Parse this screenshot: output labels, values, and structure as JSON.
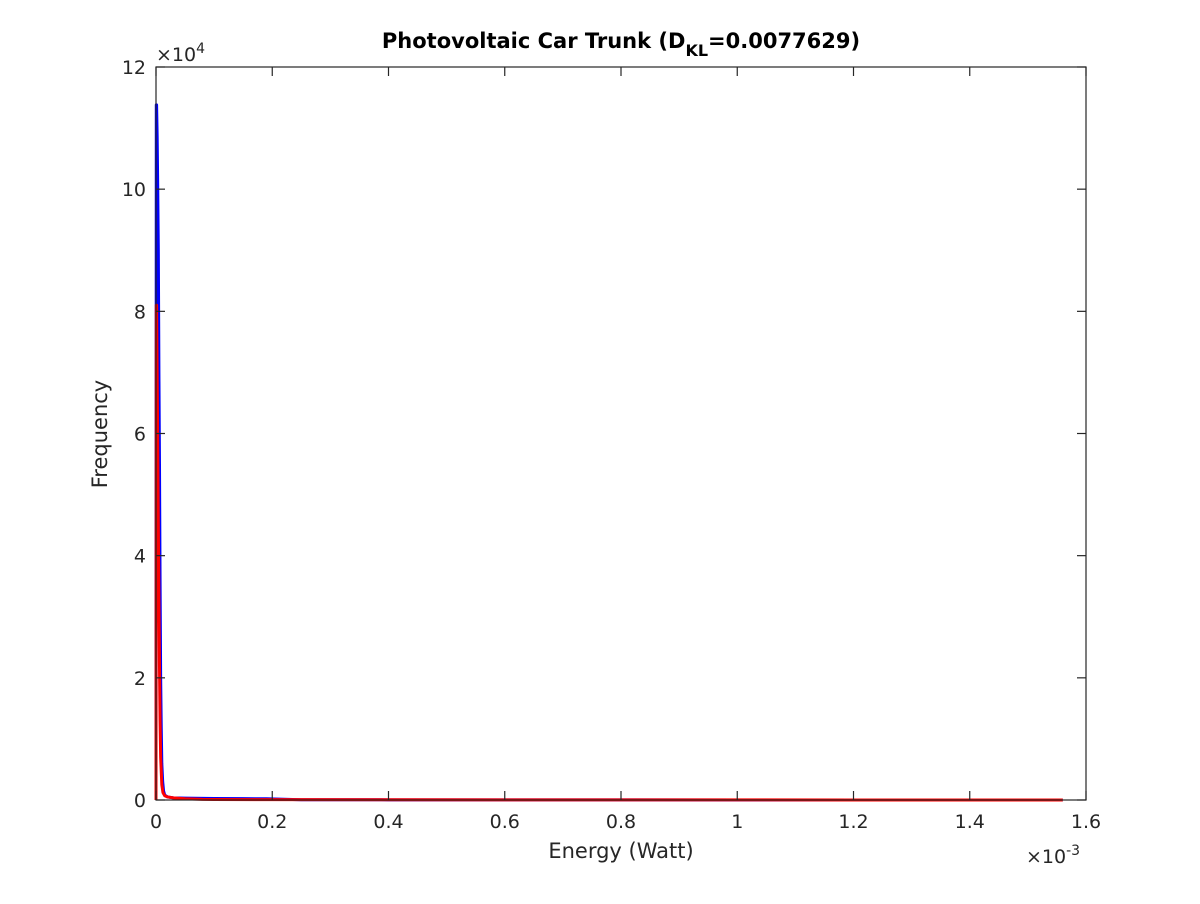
{
  "chart_data": {
    "type": "line",
    "title": "Photovoltaic Car Trunk (D",
    "title_subscript": "KL",
    "title_suffix": "=0.0077629)",
    "xlabel": "Energy (Watt)",
    "ylabel": "Frequency",
    "xlim": [
      0,
      0.0016
    ],
    "ylim": [
      0,
      120000
    ],
    "x_ticks": [
      0,
      0.0002,
      0.0004,
      0.0006,
      0.0008,
      0.001,
      0.0012,
      0.0014,
      0.0016
    ],
    "x_tick_labels": [
      "0",
      "0.2",
      "0.4",
      "0.6",
      "0.8",
      "1",
      "1.2",
      "1.4",
      "1.6"
    ],
    "y_ticks": [
      0,
      20000,
      40000,
      60000,
      80000,
      100000,
      120000
    ],
    "y_tick_labels": [
      "0",
      "2",
      "4",
      "6",
      "8",
      "10",
      "12"
    ],
    "x_exponent": {
      "base": "×10",
      "power": "-3"
    },
    "y_exponent": {
      "base": "×10",
      "power": "4"
    },
    "grid": false,
    "box": true,
    "series": [
      {
        "color": "#0000ff",
        "x": [
          0,
          5e-07,
          1e-06,
          2e-06,
          3e-06,
          4e-06,
          5e-06,
          6e-06,
          7e-06,
          8e-06,
          9e-06,
          1e-05,
          1.15e-05,
          1.3e-05,
          1.5e-05,
          2e-05,
          3e-05,
          5e-05,
          0.0001,
          0.00015,
          0.00019,
          0.00025,
          0.0004,
          0.0006,
          0.0008,
          0.001,
          0.0012,
          0.0014,
          0.00156
        ],
        "y": [
          0,
          113800,
          113800,
          108600,
          100000,
          90000,
          70000,
          55000,
          36000,
          20000,
          12000,
          6000,
          3000,
          1500,
          800,
          500,
          350,
          300,
          250,
          220,
          200,
          50,
          30,
          20,
          15,
          10,
          10,
          8,
          5
        ]
      },
      {
        "color": "#ff0000",
        "x": [
          0,
          5e-07,
          1e-06,
          2e-06,
          3e-06,
          4e-06,
          5e-06,
          6e-06,
          7e-06,
          8e-06,
          1e-05,
          1.2e-05,
          1.5e-05,
          2e-05,
          3e-05,
          5e-05,
          8e-05,
          0.0001,
          0.0002,
          0.0004,
          0.0006,
          0.0008,
          0.001,
          0.0012,
          0.0014,
          0.00156
        ],
        "y": [
          0,
          81000,
          81000,
          70000,
          58000,
          45000,
          33000,
          22000,
          13000,
          7000,
          2500,
          1200,
          700,
          500,
          350,
          200,
          100,
          80,
          60,
          40,
          30,
          20,
          15,
          10,
          8,
          5
        ]
      }
    ]
  }
}
